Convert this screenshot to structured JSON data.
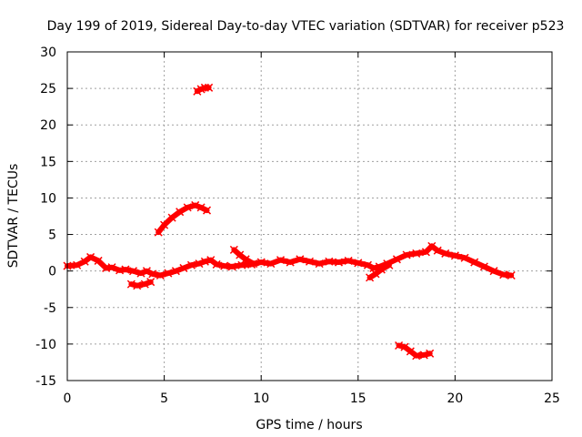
{
  "chart_data": {
    "type": "scatter",
    "title": "Day 199 of 2019, Sidereal Day-to-day VTEC variation (SDTVAR) for receiver p523",
    "xlabel": "GPS time / hours",
    "ylabel": "SDTVAR / TECUs",
    "xlim": [
      0,
      25
    ],
    "ylim": [
      -15,
      30
    ],
    "xticks": [
      0,
      5,
      10,
      15,
      20,
      25
    ],
    "yticks": [
      -15,
      -10,
      -5,
      0,
      5,
      10,
      15,
      20,
      25,
      30
    ],
    "grid": true,
    "legend": "none",
    "series": [
      {
        "name": "main-track",
        "color": "#ff0000",
        "x": [
          0.0,
          0.5,
          0.9,
          1.2,
          1.6,
          2.0,
          2.3,
          2.7,
          3.0,
          3.4,
          3.8,
          4.1,
          4.4,
          4.8,
          5.2,
          5.6,
          6.0,
          6.4,
          6.8,
          7.1,
          7.4,
          7.7,
          8.1,
          8.5,
          9.0,
          9.5,
          10.0,
          10.5,
          11.0,
          11.5,
          12.0,
          12.5,
          13.0,
          13.5,
          14.0,
          14.5,
          15.0,
          15.5,
          15.8,
          16.1,
          16.5,
          17.0,
          17.5,
          18.0,
          18.5,
          18.8,
          19.1,
          19.5,
          20.0,
          20.5,
          21.0,
          21.5,
          22.0,
          22.5,
          22.9
        ],
        "y": [
          0.7,
          0.8,
          1.3,
          1.9,
          1.4,
          0.4,
          0.5,
          0.1,
          0.2,
          0.0,
          -0.3,
          0.0,
          -0.4,
          -0.6,
          -0.3,
          0.0,
          0.4,
          0.8,
          1.0,
          1.3,
          1.5,
          0.9,
          0.7,
          0.6,
          0.8,
          0.9,
          1.2,
          1.0,
          1.5,
          1.2,
          1.6,
          1.3,
          1.0,
          1.3,
          1.2,
          1.4,
          1.1,
          0.8,
          0.4,
          0.6,
          1.0,
          1.6,
          2.2,
          2.4,
          2.6,
          3.4,
          2.8,
          2.4,
          2.1,
          1.8,
          1.2,
          0.6,
          0.0,
          -0.5,
          -0.6
        ]
      },
      {
        "name": "dip-segment-1",
        "color": "#ff0000",
        "x": [
          3.3,
          3.6,
          4.0,
          4.3
        ],
        "y": [
          -1.8,
          -2.0,
          -1.8,
          -1.5
        ]
      },
      {
        "name": "dip-segment-2",
        "color": "#ff0000",
        "x": [
          15.6,
          15.9,
          16.2,
          16.6
        ],
        "y": [
          -0.9,
          -0.4,
          0.2,
          0.8
        ]
      },
      {
        "name": "rise-segment",
        "color": "#ff0000",
        "x": [
          8.6,
          8.9,
          9.2,
          9.6
        ],
        "y": [
          2.9,
          2.2,
          1.6,
          1.0
        ]
      },
      {
        "name": "arc-segment",
        "color": "#ff0000",
        "x": [
          4.7,
          5.0,
          5.4,
          5.8,
          6.2,
          6.6,
          6.9,
          7.2
        ],
        "y": [
          5.3,
          6.3,
          7.3,
          8.1,
          8.7,
          9.0,
          8.7,
          8.3
        ]
      },
      {
        "name": "upper-segment",
        "color": "#ff0000",
        "x": [
          6.7,
          6.9,
          7.1,
          7.3
        ],
        "y": [
          24.6,
          24.9,
          25.1,
          25.1
        ]
      },
      {
        "name": "negative-segment",
        "color": "#ff0000",
        "x": [
          17.1,
          17.4,
          17.7,
          18.0,
          18.4,
          18.7
        ],
        "y": [
          -10.2,
          -10.4,
          -11.0,
          -11.6,
          -11.5,
          -11.3
        ]
      }
    ]
  }
}
